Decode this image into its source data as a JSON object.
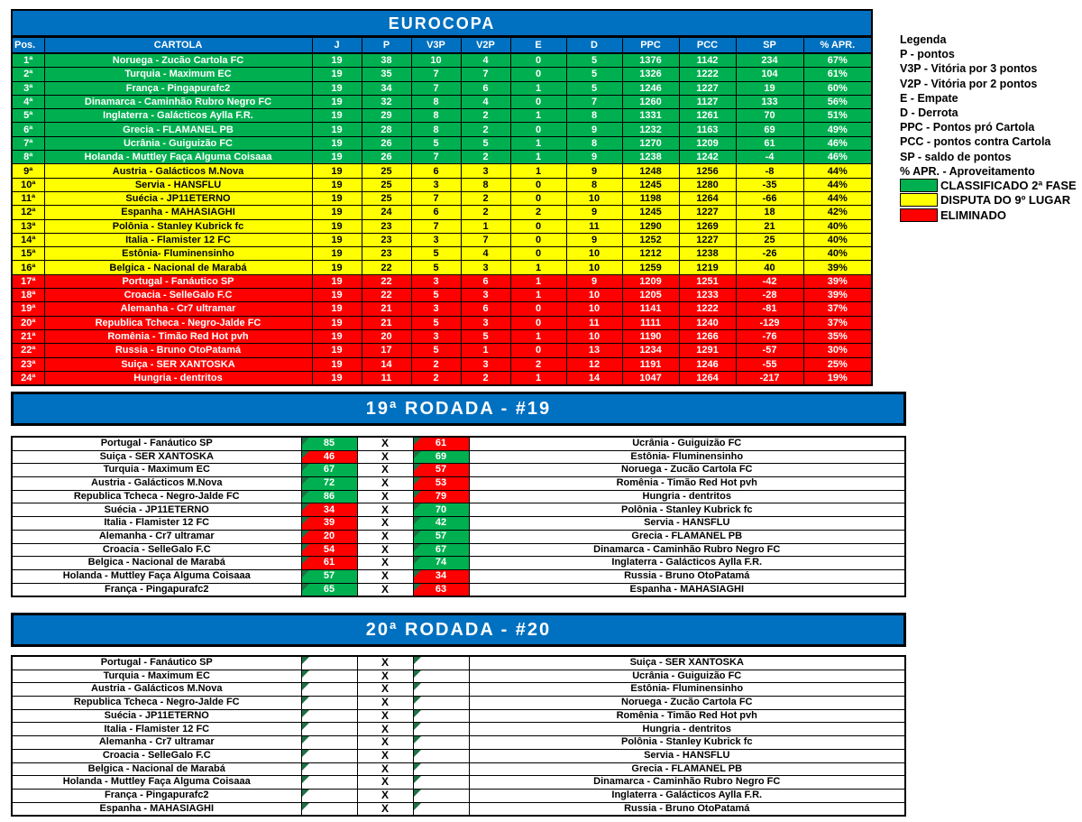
{
  "colors": {
    "header_blue": "#0070C0",
    "win_green": "#00B050",
    "loss_red": "#FF0000",
    "dispute_yellow": "#FFFF00",
    "flag_dark_green": "#1E7145"
  },
  "standings": {
    "title": "EUROCOPA",
    "columns": [
      "Pos.",
      "CARTOLA",
      "J",
      "P",
      "V3P",
      "V2P",
      "E",
      "D",
      "PPC",
      "PCC",
      "SP",
      "% APR."
    ],
    "rows": [
      {
        "pos": "1ª",
        "team": "Noruega - Zucão Cartola FC",
        "j": 19,
        "p": 38,
        "v3p": 10,
        "v2p": 4,
        "e": 0,
        "d": 5,
        "ppc": 1376,
        "pcc": 1142,
        "sp": "234",
        "apr": "67%",
        "zone": "green"
      },
      {
        "pos": "2ª",
        "team": "Turquia - Maximum EC",
        "j": 19,
        "p": 35,
        "v3p": 7,
        "v2p": 7,
        "e": 0,
        "d": 5,
        "ppc": 1326,
        "pcc": 1222,
        "sp": "104",
        "apr": "61%",
        "zone": "green"
      },
      {
        "pos": "3ª",
        "team": "França - Pingapurafc2",
        "j": 19,
        "p": 34,
        "v3p": 7,
        "v2p": 6,
        "e": 1,
        "d": 5,
        "ppc": 1246,
        "pcc": 1227,
        "sp": "19",
        "apr": "60%",
        "zone": "green"
      },
      {
        "pos": "4ª",
        "team": "Dinamarca - Caminhão Rubro Negro FC",
        "j": 19,
        "p": 32,
        "v3p": 8,
        "v2p": 4,
        "e": 0,
        "d": 7,
        "ppc": 1260,
        "pcc": 1127,
        "sp": "133",
        "apr": "56%",
        "zone": "green"
      },
      {
        "pos": "5ª",
        "team": "Inglaterra - Galácticos Aylla F.R.",
        "j": 19,
        "p": 29,
        "v3p": 8,
        "v2p": 2,
        "e": 1,
        "d": 8,
        "ppc": 1331,
        "pcc": 1261,
        "sp": "70",
        "apr": "51%",
        "zone": "green"
      },
      {
        "pos": "6ª",
        "team": "Grecia - FLAMANEL PB",
        "j": 19,
        "p": 28,
        "v3p": 8,
        "v2p": 2,
        "e": 0,
        "d": 9,
        "ppc": 1232,
        "pcc": 1163,
        "sp": "69",
        "apr": "49%",
        "zone": "green"
      },
      {
        "pos": "7ª",
        "team": "Ucrânia - Guiguizão FC",
        "j": 19,
        "p": 26,
        "v3p": 5,
        "v2p": 5,
        "e": 1,
        "d": 8,
        "ppc": 1270,
        "pcc": 1209,
        "sp": "61",
        "apr": "46%",
        "zone": "green"
      },
      {
        "pos": "8ª",
        "team": "Holanda - Muttley Faça Alguma Coisaaa",
        "j": 19,
        "p": 26,
        "v3p": 7,
        "v2p": 2,
        "e": 1,
        "d": 9,
        "ppc": 1238,
        "pcc": 1242,
        "sp": "-4",
        "apr": "46%",
        "zone": "green"
      },
      {
        "pos": "9ª",
        "team": "Austria - Galácticos M.Nova",
        "j": 19,
        "p": 25,
        "v3p": 6,
        "v2p": 3,
        "e": 1,
        "d": 9,
        "ppc": 1248,
        "pcc": 1256,
        "sp": "-8",
        "apr": "44%",
        "zone": "yellow"
      },
      {
        "pos": "10ª",
        "team": "Servia - HANSFLU",
        "j": 19,
        "p": 25,
        "v3p": 3,
        "v2p": 8,
        "e": 0,
        "d": 8,
        "ppc": 1245,
        "pcc": 1280,
        "sp": "-35",
        "apr": "44%",
        "zone": "yellow"
      },
      {
        "pos": "11ª",
        "team": "Suécia - JP11ETERNO",
        "j": 19,
        "p": 25,
        "v3p": 7,
        "v2p": 2,
        "e": 0,
        "d": 10,
        "ppc": 1198,
        "pcc": 1264,
        "sp": "-66",
        "apr": "44%",
        "zone": "yellow"
      },
      {
        "pos": "12ª",
        "team": "Espanha - MAHASIAGHI",
        "j": 19,
        "p": 24,
        "v3p": 6,
        "v2p": 2,
        "e": 2,
        "d": 9,
        "ppc": 1245,
        "pcc": 1227,
        "sp": "18",
        "apr": "42%",
        "zone": "yellow"
      },
      {
        "pos": "13ª",
        "team": "Polônia - Stanley Kubrick fc",
        "j": 19,
        "p": 23,
        "v3p": 7,
        "v2p": 1,
        "e": 0,
        "d": 11,
        "ppc": 1290,
        "pcc": 1269,
        "sp": "21",
        "apr": "40%",
        "zone": "yellow"
      },
      {
        "pos": "14ª",
        "team": "Italia - Flamister 12 FC",
        "j": 19,
        "p": 23,
        "v3p": 3,
        "v2p": 7,
        "e": 0,
        "d": 9,
        "ppc": 1252,
        "pcc": 1227,
        "sp": "25",
        "apr": "40%",
        "zone": "yellow"
      },
      {
        "pos": "15ª",
        "team": "Estônia- Fluminensinho",
        "j": 19,
        "p": 23,
        "v3p": 5,
        "v2p": 4,
        "e": 0,
        "d": 10,
        "ppc": 1212,
        "pcc": 1238,
        "sp": "-26",
        "apr": "40%",
        "zone": "yellow"
      },
      {
        "pos": "16ª",
        "team": "Belgica - Nacional de Marabá",
        "j": 19,
        "p": 22,
        "v3p": 5,
        "v2p": 3,
        "e": 1,
        "d": 10,
        "ppc": 1259,
        "pcc": 1219,
        "sp": "40",
        "apr": "39%",
        "zone": "yellow"
      },
      {
        "pos": "17ª",
        "team": "Portugal - Fanáutico SP",
        "j": 19,
        "p": 22,
        "v3p": 3,
        "v2p": 6,
        "e": 1,
        "d": 9,
        "ppc": 1209,
        "pcc": 1251,
        "sp": "-42",
        "apr": "39%",
        "zone": "red"
      },
      {
        "pos": "18ª",
        "team": "Croacia - SelleGalo F.C",
        "j": 19,
        "p": 22,
        "v3p": 5,
        "v2p": 3,
        "e": 1,
        "d": 10,
        "ppc": 1205,
        "pcc": 1233,
        "sp": "-28",
        "apr": "39%",
        "zone": "red"
      },
      {
        "pos": "19ª",
        "team": "Alemanha - Cr7 ultramar",
        "j": 19,
        "p": 21,
        "v3p": 3,
        "v2p": 6,
        "e": 0,
        "d": 10,
        "ppc": 1141,
        "pcc": 1222,
        "sp": "-81",
        "apr": "37%",
        "zone": "red"
      },
      {
        "pos": "20ª",
        "team": "Republica Tcheca - Negro-Jalde FC",
        "j": 19,
        "p": 21,
        "v3p": 5,
        "v2p": 3,
        "e": 0,
        "d": 11,
        "ppc": 1111,
        "pcc": 1240,
        "sp": "-129",
        "apr": "37%",
        "zone": "red"
      },
      {
        "pos": "21ª",
        "team": "Romênia - Timão Red Hot pvh",
        "j": 19,
        "p": 20,
        "v3p": 3,
        "v2p": 5,
        "e": 1,
        "d": 10,
        "ppc": 1190,
        "pcc": 1266,
        "sp": "-76",
        "apr": "35%",
        "zone": "red"
      },
      {
        "pos": "22ª",
        "team": "Russia - Bruno OtoPatamá",
        "j": 19,
        "p": 17,
        "v3p": 5,
        "v2p": 1,
        "e": 0,
        "d": 13,
        "ppc": 1234,
        "pcc": 1291,
        "sp": "-57",
        "apr": "30%",
        "zone": "red"
      },
      {
        "pos": "23ª",
        "team": "Suiça - SER XANTOSKA",
        "j": 19,
        "p": 14,
        "v3p": 2,
        "v2p": 3,
        "e": 2,
        "d": 12,
        "ppc": 1191,
        "pcc": 1246,
        "sp": "-55",
        "apr": "25%",
        "zone": "red"
      },
      {
        "pos": "24ª",
        "team": "Hungria - dentritos",
        "j": 19,
        "p": 11,
        "v3p": 2,
        "v2p": 2,
        "e": 1,
        "d": 14,
        "ppc": 1047,
        "pcc": 1264,
        "sp": "-217",
        "apr": "19%",
        "zone": "red"
      }
    ]
  },
  "legend": {
    "title": "Legenda",
    "items": [
      "Legenda",
      "P - pontos",
      "V3P - Vitória por 3 pontos",
      "V2P - Vitória por 2 pontos",
      "E - Empate",
      "D - Derrota",
      "PPC - Pontos pró Cartola",
      "PCC - pontos contra Cartola",
      "SP - saldo de pontos",
      "% APR. - Aproveitamento"
    ],
    "zones": [
      {
        "color": "#00B050",
        "label": "CLASSIFICADO 2ª FASE"
      },
      {
        "color": "#FFFF00",
        "label": "DISPUTA DO 9º LUGAR"
      },
      {
        "color": "#FF0000",
        "label": "ELIMINADO"
      }
    ]
  },
  "rounds": [
    {
      "title": "19ª RODADA - #19",
      "matches": [
        {
          "home": "Portugal - Fanáutico SP",
          "home_score": "85",
          "home_result": "win",
          "x": "X",
          "away_score": "61",
          "away_result": "loss",
          "away": "Ucrânia - Guiguizão FC"
        },
        {
          "home": "Suiça - SER XANTOSKA",
          "home_score": "46",
          "home_result": "loss",
          "x": "X",
          "away_score": "69",
          "away_result": "win",
          "away": "Estônia- Fluminensinho"
        },
        {
          "home": "Turquia - Maximum EC",
          "home_score": "67",
          "home_result": "win",
          "x": "X",
          "away_score": "57",
          "away_result": "loss",
          "away": "Noruega - Zucão Cartola FC"
        },
        {
          "home": "Austria - Galácticos M.Nova",
          "home_score": "72",
          "home_result": "win",
          "x": "X",
          "away_score": "53",
          "away_result": "loss",
          "away": "Romênia - Timão Red Hot pvh"
        },
        {
          "home": "Republica Tcheca - Negro-Jalde FC",
          "home_score": "86",
          "home_result": "win",
          "x": "X",
          "away_score": "79",
          "away_result": "loss",
          "away": "Hungria - dentritos"
        },
        {
          "home": "Suécia - JP11ETERNO",
          "home_score": "34",
          "home_result": "loss",
          "x": "X",
          "away_score": "70",
          "away_result": "win",
          "away": "Polônia - Stanley Kubrick fc"
        },
        {
          "home": "Italia - Flamister 12 FC",
          "home_score": "39",
          "home_result": "loss",
          "x": "X",
          "away_score": "42",
          "away_result": "win",
          "away": "Servia - HANSFLU"
        },
        {
          "home": "Alemanha - Cr7 ultramar",
          "home_score": "20",
          "home_result": "loss",
          "x": "X",
          "away_score": "57",
          "away_result": "win",
          "away": "Grecia - FLAMANEL PB"
        },
        {
          "home": "Croacia - SelleGalo F.C",
          "home_score": "54",
          "home_result": "loss",
          "x": "X",
          "away_score": "67",
          "away_result": "win",
          "away": "Dinamarca - Caminhão Rubro Negro FC"
        },
        {
          "home": "Belgica - Nacional de Marabá",
          "home_score": "61",
          "home_result": "loss",
          "x": "X",
          "away_score": "74",
          "away_result": "win",
          "away": "Inglaterra - Galácticos Aylla F.R."
        },
        {
          "home": "Holanda - Muttley Faça Alguma Coisaaa",
          "home_score": "57",
          "home_result": "win",
          "x": "X",
          "away_score": "34",
          "away_result": "loss",
          "away": "Russia - Bruno OtoPatamá"
        },
        {
          "home": "França - Pingapurafc2",
          "home_score": "65",
          "home_result": "win",
          "x": "X",
          "away_score": "63",
          "away_result": "loss",
          "away": "Espanha - MAHASIAGHI"
        }
      ]
    },
    {
      "title": "20ª RODADA - #20",
      "matches": [
        {
          "home": "Portugal - Fanáutico SP",
          "home_score": "",
          "home_result": "none",
          "x": "X",
          "away_score": "",
          "away_result": "none",
          "away": "Suiça - SER XANTOSKA"
        },
        {
          "home": "Turquia - Maximum EC",
          "home_score": "",
          "home_result": "none",
          "x": "X",
          "away_score": "",
          "away_result": "none",
          "away": "Ucrânia - Guiguizão FC"
        },
        {
          "home": "Austria - Galácticos M.Nova",
          "home_score": "",
          "home_result": "none",
          "x": "X",
          "away_score": "",
          "away_result": "none",
          "away": "Estônia- Fluminensinho"
        },
        {
          "home": "Republica Tcheca - Negro-Jalde FC",
          "home_score": "",
          "home_result": "none",
          "x": "X",
          "away_score": "",
          "away_result": "none",
          "away": "Noruega - Zucão Cartola FC"
        },
        {
          "home": "Suécia - JP11ETERNO",
          "home_score": "",
          "home_result": "none",
          "x": "X",
          "away_score": "",
          "away_result": "none",
          "away": "Romênia - Timão Red Hot pvh"
        },
        {
          "home": "Italia - Flamister 12 FC",
          "home_score": "",
          "home_result": "none",
          "x": "X",
          "away_score": "",
          "away_result": "none",
          "away": "Hungria - dentritos"
        },
        {
          "home": "Alemanha - Cr7 ultramar",
          "home_score": "",
          "home_result": "none",
          "x": "X",
          "away_score": "",
          "away_result": "none",
          "away": "Polônia - Stanley Kubrick fc"
        },
        {
          "home": "Croacia - SelleGalo F.C",
          "home_score": "",
          "home_result": "none",
          "x": "X",
          "away_score": "",
          "away_result": "none",
          "away": "Servia - HANSFLU"
        },
        {
          "home": "Belgica - Nacional de Marabá",
          "home_score": "",
          "home_result": "none",
          "x": "X",
          "away_score": "",
          "away_result": "none",
          "away": "Grecia - FLAMANEL PB"
        },
        {
          "home": "Holanda - Muttley Faça Alguma Coisaaa",
          "home_score": "",
          "home_result": "none",
          "x": "X",
          "away_score": "",
          "away_result": "none",
          "away": "Dinamarca - Caminhão Rubro Negro FC"
        },
        {
          "home": "França - Pingapurafc2",
          "home_score": "",
          "home_result": "none",
          "x": "X",
          "away_score": "",
          "away_result": "none",
          "away": "Inglaterra - Galácticos Aylla F.R."
        },
        {
          "home": "Espanha - MAHASIAGHI",
          "home_score": "",
          "home_result": "none",
          "x": "X",
          "away_score": "",
          "away_result": "none",
          "away": "Russia - Bruno OtoPatamá"
        }
      ]
    }
  ]
}
